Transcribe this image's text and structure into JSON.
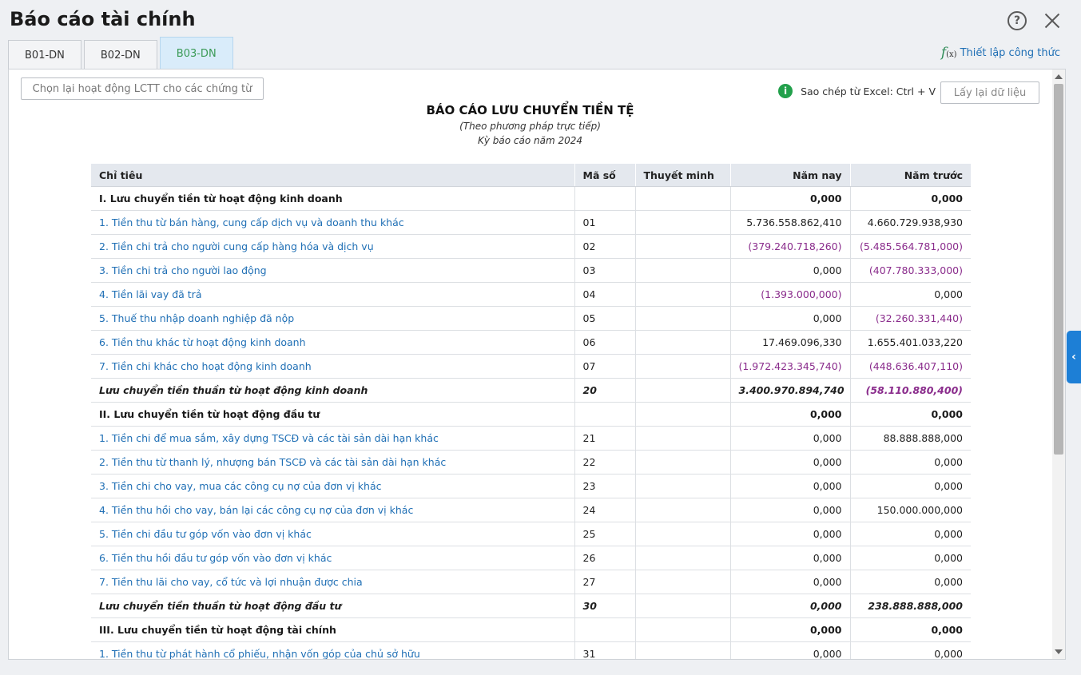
{
  "window": {
    "title": "Báo cáo tài chính"
  },
  "tabs": [
    {
      "label": "B01-DN",
      "active": false
    },
    {
      "label": "B02-DN",
      "active": false
    },
    {
      "label": "B03-DN",
      "active": true
    }
  ],
  "formula_link": {
    "icon_text": "f",
    "icon_sub": "(x)",
    "label": "Thiết lập công thức"
  },
  "toolbar": {
    "reselect_label": "Chọn lại hoạt động LCTT cho các chứng từ",
    "copy_hint": "Sao chép từ Excel: Ctrl + V",
    "reload_label": "Lấy lại dữ liệu"
  },
  "report": {
    "title": "BÁO CÁO LƯU CHUYỂN TIỀN TỆ",
    "subtitle": "(Theo phương pháp trực tiếp)",
    "period": "Kỳ báo cáo năm 2024"
  },
  "table": {
    "headers": {
      "indicator": "Chỉ tiêu",
      "code": "Mã số",
      "note": "Thuyết minh",
      "current": "Năm nay",
      "previous": "Năm trước"
    },
    "rows": [
      {
        "type": "section",
        "label": "I. Lưu chuyển tiền từ hoạt động kinh doanh",
        "code": "",
        "note": "",
        "current": "0,000",
        "previous": "0,000"
      },
      {
        "type": "item",
        "label": "1. Tiền thu từ bán hàng, cung cấp dịch vụ và doanh thu khác",
        "code": "01",
        "note": "",
        "current": "5.736.558.862,410",
        "previous": "4.660.729.938,930"
      },
      {
        "type": "item",
        "label": "2. Tiền chi trả cho người cung cấp hàng hóa và dịch vụ",
        "code": "02",
        "note": "",
        "current": "(379.240.718,260)",
        "previous": "(5.485.564.781,000)"
      },
      {
        "type": "item",
        "label": "3. Tiền chi trả cho người lao động",
        "code": "03",
        "note": "",
        "current": "0,000",
        "previous": "(407.780.333,000)"
      },
      {
        "type": "item",
        "label": "4. Tiền lãi vay đã trả",
        "code": "04",
        "note": "",
        "current": "(1.393.000,000)",
        "previous": "0,000"
      },
      {
        "type": "item",
        "label": "5. Thuế thu nhập doanh nghiệp đã nộp",
        "code": "05",
        "note": "",
        "current": "0,000",
        "previous": "(32.260.331,440)"
      },
      {
        "type": "item",
        "label": "6. Tiền thu khác từ hoạt động kinh doanh",
        "code": "06",
        "note": "",
        "current": "17.469.096,330",
        "previous": "1.655.401.033,220"
      },
      {
        "type": "item",
        "label": "7. Tiền chi khác cho hoạt động kinh doanh",
        "code": "07",
        "note": "",
        "current": "(1.972.423.345,740)",
        "previous": "(448.636.407,110)"
      },
      {
        "type": "total",
        "label": "Lưu chuyển tiền thuần từ hoạt động kinh doanh",
        "code": "20",
        "note": "",
        "current": "3.400.970.894,740",
        "previous": "(58.110.880,400)"
      },
      {
        "type": "section",
        "label": "II. Lưu chuyển tiền từ hoạt động đầu tư",
        "code": "",
        "note": "",
        "current": "0,000",
        "previous": "0,000"
      },
      {
        "type": "item",
        "label": "1. Tiền chi để mua sắm, xây dựng TSCĐ và các tài sản dài hạn khác",
        "code": "21",
        "note": "",
        "current": "0,000",
        "previous": "88.888.888,000"
      },
      {
        "type": "item",
        "label": "2. Tiền thu từ thanh lý, nhượng bán TSCĐ và các tài sản dài hạn khác",
        "code": "22",
        "note": "",
        "current": "0,000",
        "previous": "0,000"
      },
      {
        "type": "item",
        "label": "3. Tiền chi cho vay, mua các công cụ nợ của đơn vị khác",
        "code": "23",
        "note": "",
        "current": "0,000",
        "previous": "0,000"
      },
      {
        "type": "item",
        "label": "4. Tiền thu hồi cho vay, bán lại các công cụ nợ của đơn vị khác",
        "code": "24",
        "note": "",
        "current": "0,000",
        "previous": "150.000.000,000"
      },
      {
        "type": "item",
        "label": "5. Tiền chi đầu tư góp vốn vào đơn vị khác",
        "code": "25",
        "note": "",
        "current": "0,000",
        "previous": "0,000"
      },
      {
        "type": "item",
        "label": "6. Tiền thu hồi đầu tư góp vốn vào đơn vị khác",
        "code": "26",
        "note": "",
        "current": "0,000",
        "previous": "0,000"
      },
      {
        "type": "item",
        "label": "7. Tiền thu lãi cho vay, cổ tức và lợi nhuận được chia",
        "code": "27",
        "note": "",
        "current": "0,000",
        "previous": "0,000"
      },
      {
        "type": "total",
        "label": "Lưu chuyển tiền thuần từ hoạt động đầu tư",
        "code": "30",
        "note": "",
        "current": "0,000",
        "previous": "238.888.888,000"
      },
      {
        "type": "section",
        "label": "III. Lưu chuyển tiền từ hoạt động tài chính",
        "code": "",
        "note": "",
        "current": "0,000",
        "previous": "0,000"
      },
      {
        "type": "item",
        "label": "1. Tiền thu từ phát hành cổ phiếu, nhận vốn góp của chủ sở hữu",
        "code": "31",
        "note": "",
        "current": "0,000",
        "previous": "0,000"
      }
    ]
  },
  "icons": {
    "help": "help-icon",
    "close": "close-icon",
    "info": "info-icon",
    "side_toggle": "chevron-left-icon"
  }
}
